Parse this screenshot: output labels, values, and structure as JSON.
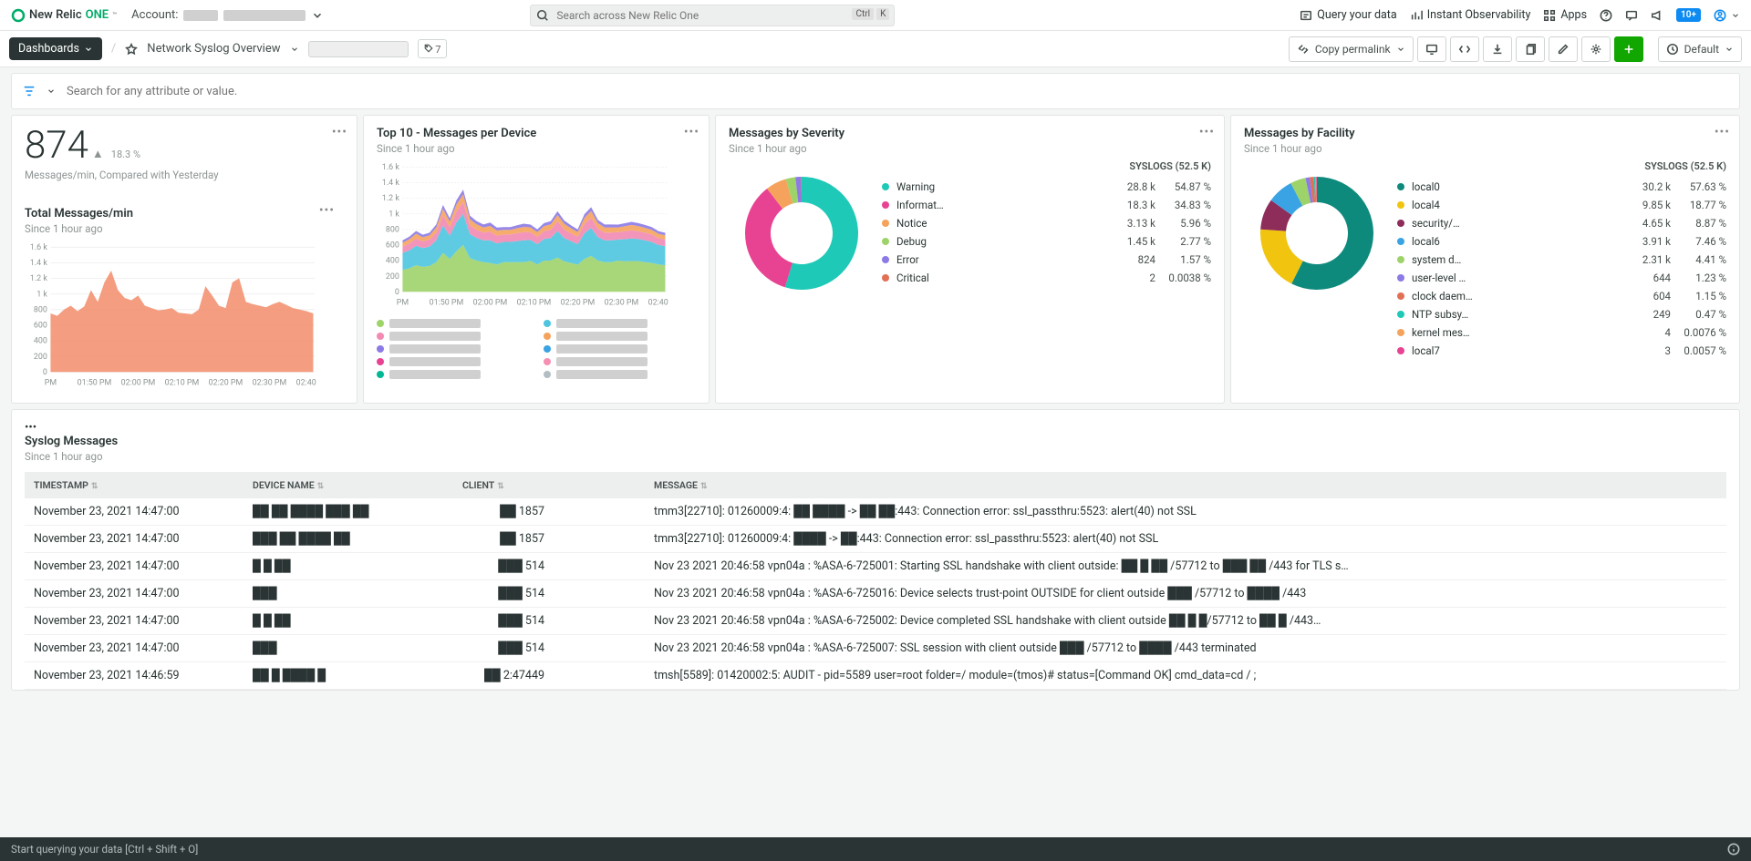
{
  "header": {
    "logo_text_a": "New Relic",
    "logo_text_b": "ONE",
    "account_label": "Account:",
    "search_placeholder": "Search across New Relic One",
    "kbd_a": "Ctrl",
    "kbd_b": "K",
    "query_link": "Query your data",
    "instant_link": "Instant Observability",
    "apps_link": "Apps",
    "notif_badge": "10+"
  },
  "toolbar": {
    "dashboards_btn": "Dashboards",
    "dash_title": "Network Syslog Overview",
    "tag_count": "7",
    "copy_permalink": "Copy permalink",
    "default_label": "Default"
  },
  "filter": {
    "placeholder": "Search for any attribute or value."
  },
  "kpi": {
    "value": "874",
    "delta": "18.3 %",
    "desc": "Messages/min, Compared with Yesterday"
  },
  "totals_chart": {
    "title": "Total Messages/min",
    "subtitle": "Since 1 hour ago",
    "color": "#f28c6a",
    "ylabels": [
      "1.6 k",
      "1.4 k",
      "1.2 k",
      "1 k",
      "800",
      "600",
      "400",
      "200",
      "0"
    ],
    "xlabels": [
      "PM",
      "01:50 PM",
      "02:00 PM",
      "02:10 PM",
      "02:20 PM",
      "02:30 PM",
      "02:40 PM"
    ],
    "values": [
      750,
      720,
      800,
      850,
      780,
      840,
      1050,
      900,
      1150,
      1300,
      1050,
      950,
      920,
      980,
      850,
      820,
      790,
      800,
      820,
      760,
      750,
      740,
      800,
      1100,
      980,
      850,
      820,
      1150,
      1200,
      900,
      870,
      850,
      830,
      870,
      900,
      860,
      820,
      800,
      780,
      750
    ]
  },
  "top10_chart": {
    "title": "Top 10 - Messages per Device",
    "subtitle": "Since 1 hour ago",
    "ylabels": [
      "1.6 k",
      "1.4 k",
      "1.2 k",
      "1 k",
      "800",
      "600",
      "400",
      "200",
      "0"
    ],
    "xlabels": [
      "PM",
      "01:50 PM",
      "02:00 PM",
      "02:10 PM",
      "02:20 PM",
      "02:30 PM",
      "02:40 PM"
    ],
    "series_colors": [
      "#9ed36a",
      "#4ec5e0",
      "#f28ab2",
      "#f5a35c",
      "#8c7ae6",
      "#3aa3e3",
      "#e84393",
      "#f78fb3",
      "#00b894",
      "#b2bec3"
    ],
    "stack_values": [
      [
        280,
        300,
        340,
        320,
        330,
        380,
        500,
        420,
        520,
        600,
        430,
        400,
        380,
        370,
        350,
        380,
        380,
        380,
        380,
        395,
        350,
        398,
        400,
        440,
        390,
        370,
        348,
        420,
        460,
        400,
        380,
        380,
        400,
        390,
        394,
        392,
        380,
        370,
        350,
        340
      ],
      [
        220,
        230,
        250,
        240,
        250,
        280,
        350,
        300,
        370,
        400,
        310,
        290,
        280,
        290,
        270,
        260,
        260,
        270,
        280,
        270,
        260,
        280,
        290,
        340,
        300,
        280,
        262,
        330,
        360,
        300,
        280,
        280,
        270,
        285,
        290,
        285,
        280,
        270,
        250,
        245
      ],
      [
        80,
        90,
        95,
        85,
        90,
        100,
        130,
        110,
        140,
        150,
        115,
        105,
        100,
        110,
        100,
        95,
        95,
        100,
        105,
        98,
        95,
        100,
        105,
        125,
        110,
        100,
        95,
        120,
        130,
        110,
        100,
        100,
        95,
        100,
        105,
        100,
        98,
        95,
        88,
        85
      ],
      [
        50,
        55,
        60,
        55,
        55,
        65,
        85,
        70,
        90,
        100,
        75,
        70,
        65,
        74,
        65,
        60,
        60,
        65,
        68,
        62,
        60,
        65,
        70,
        80,
        72,
        65,
        60,
        78,
        85,
        70,
        65,
        65,
        60,
        66,
        68,
        65,
        62,
        60,
        56,
        55
      ],
      [
        30,
        32,
        35,
        32,
        33,
        38,
        50,
        42,
        55,
        60,
        45,
        40,
        38,
        44,
        38,
        35,
        35,
        38,
        40,
        37,
        35,
        38,
        40,
        48,
        43,
        38,
        35,
        46,
        50,
        42,
        38,
        38,
        36,
        38,
        40,
        38,
        37,
        35,
        33,
        32
      ]
    ]
  },
  "severity": {
    "title": "Messages by Severity",
    "subtitle": "Since 1 hour ago",
    "legend_title": "SYSLOGS (52.5 K)",
    "rows": [
      {
        "name": "Warning",
        "val": "28.8 k",
        "pct": "54.87 %",
        "color": "#1ec9b7"
      },
      {
        "name": "Informat…",
        "val": "18.3 k",
        "pct": "34.83 %",
        "color": "#e84393"
      },
      {
        "name": "Notice",
        "val": "3.13 k",
        "pct": "5.96 %",
        "color": "#f5a35c"
      },
      {
        "name": "Debug",
        "val": "1.45 k",
        "pct": "2.77 %",
        "color": "#9ed36a"
      },
      {
        "name": "Error",
        "val": "824",
        "pct": "1.57 %",
        "color": "#8c7ae6"
      },
      {
        "name": "Critical",
        "val": "2",
        "pct": "0.0038 %",
        "color": "#e17055"
      }
    ]
  },
  "facility": {
    "title": "Messages by Facility",
    "subtitle": "Since 1 hour ago",
    "legend_title": "SYSLOGS (52.5 K)",
    "rows": [
      {
        "name": "local0",
        "val": "30.2 k",
        "pct": "57.63 %",
        "color": "#0e8a7d"
      },
      {
        "name": "local4",
        "val": "9.85 k",
        "pct": "18.77 %",
        "color": "#f1c40f"
      },
      {
        "name": "security/…",
        "val": "4.65 k",
        "pct": "8.87 %",
        "color": "#8e2c5a"
      },
      {
        "name": "local6",
        "val": "3.91 k",
        "pct": "7.46 %",
        "color": "#3aa3e3"
      },
      {
        "name": "system d…",
        "val": "2.31 k",
        "pct": "4.41 %",
        "color": "#9ed36a"
      },
      {
        "name": "user-level …",
        "val": "644",
        "pct": "1.23 %",
        "color": "#8c7ae6"
      },
      {
        "name": "clock daem…",
        "val": "604",
        "pct": "1.15 %",
        "color": "#e17055"
      },
      {
        "name": "NTP subsy…",
        "val": "249",
        "pct": "0.47 %",
        "color": "#1ec9b7"
      },
      {
        "name": "kernel mes…",
        "val": "4",
        "pct": "0.0076 %",
        "color": "#f5a35c"
      },
      {
        "name": "local7",
        "val": "3",
        "pct": "0.0057 %",
        "color": "#e84393"
      }
    ]
  },
  "syslog_table": {
    "title": "Syslog Messages",
    "subtitle": "Since 1 hour ago",
    "columns": [
      "TIMESTAMP",
      "DEVICE NAME",
      "CLIENT",
      "MESSAGE"
    ],
    "rows": [
      {
        "ts": "November 23, 2021 14:47:00",
        "dev": "██ ██ ████ ███ ██",
        "client": "██ 1857",
        "msg": "tmm3[22710]: 01260009:4: ██ ████ -> ██ ██:443: Connection error: ssl_passthru:5523: alert(40) not SSL"
      },
      {
        "ts": "November 23, 2021 14:47:00",
        "dev": "███ ██ ████ ██",
        "client": "██ 1857",
        "msg": "tmm3[22710]: 01260009:4: ████ -> ██:443: Connection error: ssl_passthru:5523: alert(40) not SSL"
      },
      {
        "ts": "November 23, 2021 14:47:00",
        "dev": "█ █ ██",
        "client": "███ 514",
        "msg": "Nov 23 2021 20:46:58 vpn04a : %ASA-6-725001: Starting SSL handshake with client outside: ██ █ ██ /57712 to ███ ██ /443 for TLS s…"
      },
      {
        "ts": "November 23, 2021 14:47:00",
        "dev": "███",
        "client": "███ 514",
        "msg": "Nov 23 2021 20:46:58 vpn04a : %ASA-6-725016: Device selects trust-point OUTSIDE for client outside ███ /57712 to ████ /443"
      },
      {
        "ts": "November 23, 2021 14:47:00",
        "dev": "█ █ ██",
        "client": "███ 514",
        "msg": "Nov 23 2021 20:46:58 vpn04a : %ASA-6-725002: Device completed SSL handshake with client outside ██ █ █/57712 to ██ █ /443…"
      },
      {
        "ts": "November 23, 2021 14:47:00",
        "dev": "███",
        "client": "███ 514",
        "msg": "Nov 23 2021 20:46:58 vpn04a : %ASA-6-725007: SSL session with client outside ███ /57712 to ████ /443 terminated"
      },
      {
        "ts": "November 23, 2021 14:46:59",
        "dev": "██ █ ████ █",
        "client": "██ 2:47449",
        "msg": "tmsh[5589]: 01420002:5: AUDIT - pid=5589 user=root folder=/ module=(tmos)# status=[Command OK] cmd_data=cd / ;"
      }
    ]
  },
  "footer": {
    "text": "Start querying your data [Ctrl + Shift + O]"
  }
}
